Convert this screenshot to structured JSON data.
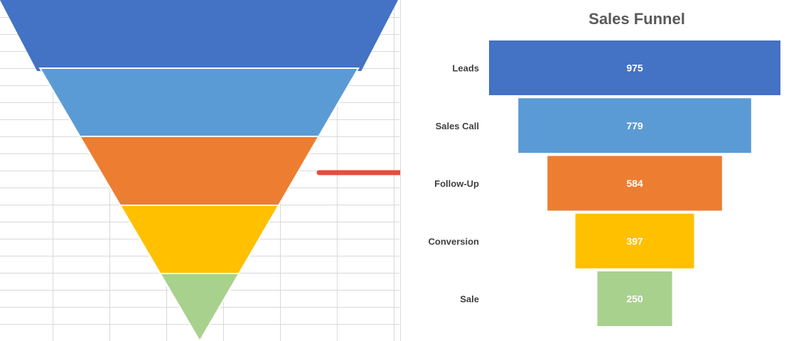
{
  "colors": {
    "leads": "#4472C4",
    "sales_call": "#5B9BD5",
    "follow_up": "#ED7D31",
    "conversion": "#FFC000",
    "sale": "#A9D18E",
    "arrow": "#E84C3D",
    "gridline": "#d9d9d9",
    "label_text": "#404040",
    "title_text": "#595959"
  },
  "chart_data": {
    "type": "bar",
    "orientation": "horizontal-funnel",
    "title": "Sales Funnel",
    "categories": [
      "Leads",
      "Sales Call",
      "Follow-Up",
      "Conversion",
      "Sale"
    ],
    "values": [
      975,
      779,
      584,
      397,
      250
    ],
    "data_labels": [
      "975",
      "779",
      "584",
      "397",
      "250"
    ],
    "bar_colors": [
      "#4472C4",
      "#5B9BD5",
      "#ED7D31",
      "#FFC000",
      "#A9D18E"
    ],
    "grid": false,
    "legend": "none"
  },
  "funnel_shape": {
    "layers": [
      "Leads",
      "Sales Call",
      "Follow-Up",
      "Conversion",
      "Sale"
    ],
    "layer_colors": [
      "#4472C4",
      "#5B9BD5",
      "#ED7D31",
      "#FFC000",
      "#A9D18E"
    ]
  }
}
